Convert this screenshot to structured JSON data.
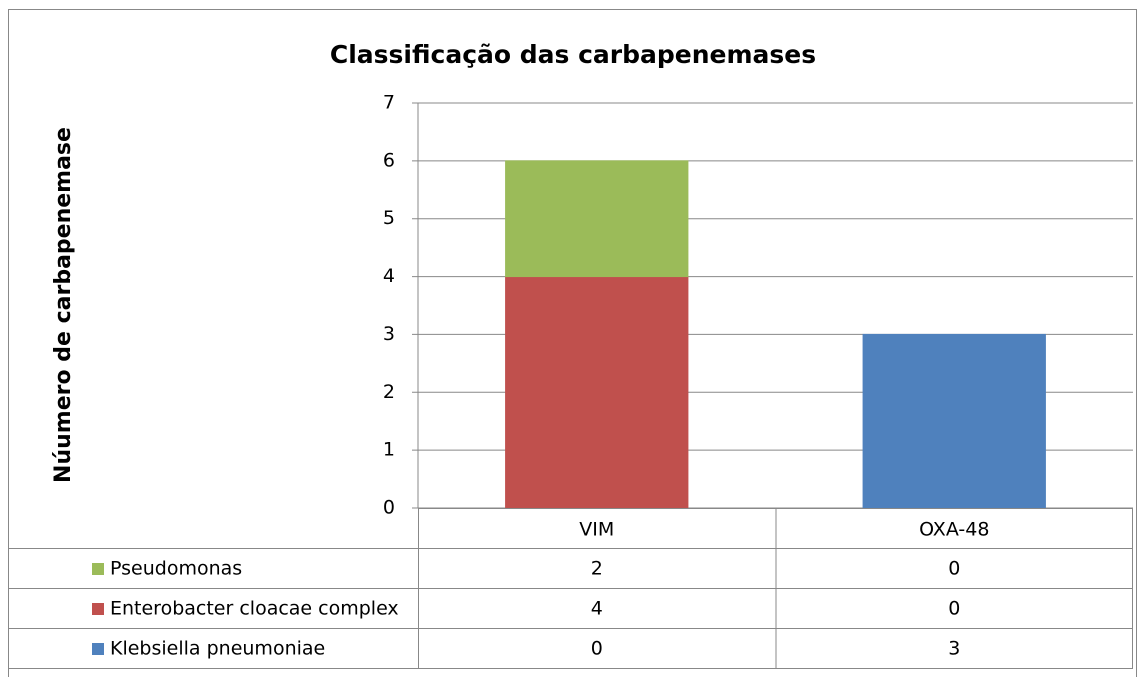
{
  "chart_data": {
    "type": "stacked-bar",
    "title": "Classificação das carbapenemases",
    "y_label": "Núumero de carbapenemase",
    "categories": [
      "VIM",
      "OXA-48"
    ],
    "series": [
      {
        "name": "Klebsiella pneumoniae",
        "color": "#4f81bd",
        "values": [
          0,
          3
        ]
      },
      {
        "name": "Enterobacter cloacae complex",
        "color": "#c0504d",
        "values": [
          4,
          0
        ]
      },
      {
        "name": "Pseudomonas",
        "color": "#9bbb59",
        "values": [
          2,
          0
        ]
      }
    ],
    "ylim": [
      0,
      7
    ],
    "yticks": [
      0,
      1,
      2,
      3,
      4,
      5,
      6,
      7
    ],
    "grid": true,
    "data_table": true
  }
}
